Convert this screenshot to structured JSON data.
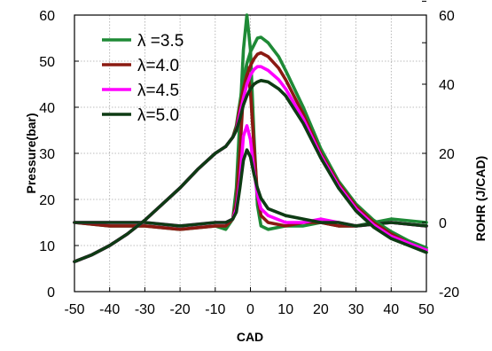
{
  "chart_data": {
    "type": "line",
    "xlabel": "CAD",
    "ylabel": "Pressure(bar)",
    "y2label": "ROHR (J/CAD)",
    "xlim": [
      -50,
      50
    ],
    "ylim": [
      0,
      60
    ],
    "y2lim": [
      -20,
      60
    ],
    "xticks": [
      "-50",
      "-40",
      "-30",
      "-20",
      "-10",
      "0",
      "10",
      "20",
      "30",
      "40",
      "50"
    ],
    "yticks": [
      "0",
      "10",
      "20",
      "30",
      "40",
      "50",
      "60"
    ],
    "y2ticks": [
      "-20",
      "0",
      "20",
      "40",
      "60"
    ],
    "grid": true,
    "legend_position": "top-left",
    "series": [
      {
        "name": "λ =3.5",
        "color": "#1e8a36",
        "pressure": [
          [
            -50,
            6.5
          ],
          [
            -45,
            8
          ],
          [
            -40,
            10
          ],
          [
            -35,
            12.5
          ],
          [
            -30,
            15.5
          ],
          [
            -25,
            19
          ],
          [
            -20,
            22.5
          ],
          [
            -15,
            26.5
          ],
          [
            -10,
            30
          ],
          [
            -7,
            31.5
          ],
          [
            -5,
            33.5
          ],
          [
            -4,
            36
          ],
          [
            -3,
            41
          ],
          [
            -2,
            46
          ],
          [
            -1,
            49.5
          ],
          [
            0,
            52
          ],
          [
            1,
            53.5
          ],
          [
            2,
            55
          ],
          [
            3,
            55.2
          ],
          [
            5,
            54
          ],
          [
            8,
            51
          ],
          [
            10,
            48
          ],
          [
            15,
            40
          ],
          [
            20,
            31
          ],
          [
            25,
            24
          ],
          [
            30,
            19
          ],
          [
            35,
            15.5
          ],
          [
            40,
            13
          ],
          [
            45,
            11
          ],
          [
            50,
            9.5
          ]
        ],
        "rohr": [
          [
            -50,
            0
          ],
          [
            -40,
            -1
          ],
          [
            -30,
            -1
          ],
          [
            -20,
            -2
          ],
          [
            -10,
            -1
          ],
          [
            -7,
            -2
          ],
          [
            -5,
            1
          ],
          [
            -4,
            10
          ],
          [
            -3,
            30
          ],
          [
            -2,
            50
          ],
          [
            -1,
            60
          ],
          [
            0,
            50
          ],
          [
            1,
            25
          ],
          [
            2,
            5
          ],
          [
            3,
            -1
          ],
          [
            5,
            -2
          ],
          [
            10,
            -1
          ],
          [
            15,
            -1
          ],
          [
            20,
            0
          ],
          [
            25,
            -1
          ],
          [
            30,
            -1
          ],
          [
            40,
            1
          ],
          [
            50,
            0
          ]
        ]
      },
      {
        "name": "λ=4.0",
        "color": "#8b1a12",
        "pressure": [
          [
            -50,
            6.5
          ],
          [
            -45,
            8
          ],
          [
            -40,
            10
          ],
          [
            -35,
            12.5
          ],
          [
            -30,
            15.5
          ],
          [
            -25,
            19
          ],
          [
            -20,
            22.5
          ],
          [
            -15,
            26.5
          ],
          [
            -10,
            30
          ],
          [
            -7,
            31.5
          ],
          [
            -5,
            33.5
          ],
          [
            -4,
            35.5
          ],
          [
            -3,
            40
          ],
          [
            -2,
            44
          ],
          [
            -1,
            47
          ],
          [
            0,
            49
          ],
          [
            1,
            50.5
          ],
          [
            2,
            51.5
          ],
          [
            3,
            51.8
          ],
          [
            5,
            51
          ],
          [
            8,
            48.5
          ],
          [
            10,
            46
          ],
          [
            15,
            38.5
          ],
          [
            20,
            30
          ],
          [
            25,
            23.5
          ],
          [
            30,
            18.5
          ],
          [
            35,
            15
          ],
          [
            40,
            12.5
          ],
          [
            45,
            10.5
          ],
          [
            50,
            9
          ]
        ],
        "rohr": [
          [
            -50,
            0
          ],
          [
            -40,
            -1
          ],
          [
            -30,
            -1
          ],
          [
            -20,
            -2
          ],
          [
            -10,
            -1
          ],
          [
            -7,
            -1
          ],
          [
            -5,
            1
          ],
          [
            -4,
            6
          ],
          [
            -3,
            20
          ],
          [
            -2,
            38
          ],
          [
            -1,
            45
          ],
          [
            0,
            38
          ],
          [
            1,
            22
          ],
          [
            2,
            8
          ],
          [
            3,
            2
          ],
          [
            5,
            0
          ],
          [
            10,
            -1
          ],
          [
            15,
            0
          ],
          [
            20,
            0
          ],
          [
            25,
            -1
          ],
          [
            30,
            -1
          ],
          [
            40,
            0
          ],
          [
            50,
            -1
          ]
        ]
      },
      {
        "name": "λ=4.5",
        "color": "#ff00ff",
        "pressure": [
          [
            -50,
            6.5
          ],
          [
            -45,
            8
          ],
          [
            -40,
            10
          ],
          [
            -35,
            12.5
          ],
          [
            -30,
            15.5
          ],
          [
            -25,
            19
          ],
          [
            -20,
            22.5
          ],
          [
            -15,
            26.5
          ],
          [
            -10,
            30
          ],
          [
            -7,
            31.5
          ],
          [
            -5,
            33.5
          ],
          [
            -4,
            35
          ],
          [
            -3,
            38.5
          ],
          [
            -2,
            42
          ],
          [
            -1,
            45
          ],
          [
            0,
            47
          ],
          [
            1,
            48.2
          ],
          [
            2,
            48.8
          ],
          [
            3,
            48.8
          ],
          [
            5,
            48
          ],
          [
            8,
            46
          ],
          [
            10,
            44
          ],
          [
            15,
            37.5
          ],
          [
            20,
            29.5
          ],
          [
            25,
            23
          ],
          [
            30,
            18
          ],
          [
            35,
            14.5
          ],
          [
            40,
            12
          ],
          [
            45,
            10.5
          ],
          [
            50,
            9
          ]
        ],
        "rohr": [
          [
            -50,
            0
          ],
          [
            -40,
            0
          ],
          [
            -30,
            0
          ],
          [
            -20,
            -1
          ],
          [
            -10,
            0
          ],
          [
            -7,
            0
          ],
          [
            -5,
            1
          ],
          [
            -4,
            4
          ],
          [
            -3,
            12
          ],
          [
            -2,
            25
          ],
          [
            -1,
            28
          ],
          [
            0,
            24
          ],
          [
            1,
            15
          ],
          [
            2,
            8
          ],
          [
            3,
            4
          ],
          [
            5,
            2
          ],
          [
            10,
            0
          ],
          [
            15,
            0
          ],
          [
            20,
            1
          ],
          [
            25,
            0
          ],
          [
            30,
            -1
          ],
          [
            40,
            0
          ],
          [
            50,
            -1
          ]
        ]
      },
      {
        "name": "λ=5.0",
        "color": "#0e3b14",
        "pressure": [
          [
            -50,
            6.5
          ],
          [
            -45,
            8
          ],
          [
            -40,
            10
          ],
          [
            -35,
            12.5
          ],
          [
            -30,
            15.5
          ],
          [
            -25,
            19
          ],
          [
            -20,
            22.5
          ],
          [
            -15,
            26.5
          ],
          [
            -10,
            30
          ],
          [
            -7,
            31.5
          ],
          [
            -5,
            33.5
          ],
          [
            -4,
            35
          ],
          [
            -3,
            37.5
          ],
          [
            -2,
            40.5
          ],
          [
            -1,
            42.5
          ],
          [
            0,
            44
          ],
          [
            1,
            45
          ],
          [
            2,
            45.5
          ],
          [
            3,
            45.8
          ],
          [
            5,
            45.5
          ],
          [
            8,
            44
          ],
          [
            10,
            42.5
          ],
          [
            15,
            36.5
          ],
          [
            20,
            29
          ],
          [
            25,
            22.5
          ],
          [
            30,
            17.5
          ],
          [
            35,
            14
          ],
          [
            40,
            11.5
          ],
          [
            45,
            10
          ],
          [
            50,
            8.5
          ]
        ],
        "rohr": [
          [
            -50,
            0
          ],
          [
            -40,
            0
          ],
          [
            -30,
            0
          ],
          [
            -20,
            -1
          ],
          [
            -10,
            0
          ],
          [
            -7,
            0
          ],
          [
            -5,
            1
          ],
          [
            -4,
            3
          ],
          [
            -3,
            10
          ],
          [
            -2,
            18
          ],
          [
            -1,
            21
          ],
          [
            0,
            19
          ],
          [
            1,
            14
          ],
          [
            2,
            10
          ],
          [
            3,
            7
          ],
          [
            5,
            4
          ],
          [
            10,
            2
          ],
          [
            15,
            1
          ],
          [
            20,
            0
          ],
          [
            25,
            0
          ],
          [
            30,
            -1
          ],
          [
            40,
            0
          ],
          [
            50,
            -1
          ]
        ]
      }
    ]
  }
}
